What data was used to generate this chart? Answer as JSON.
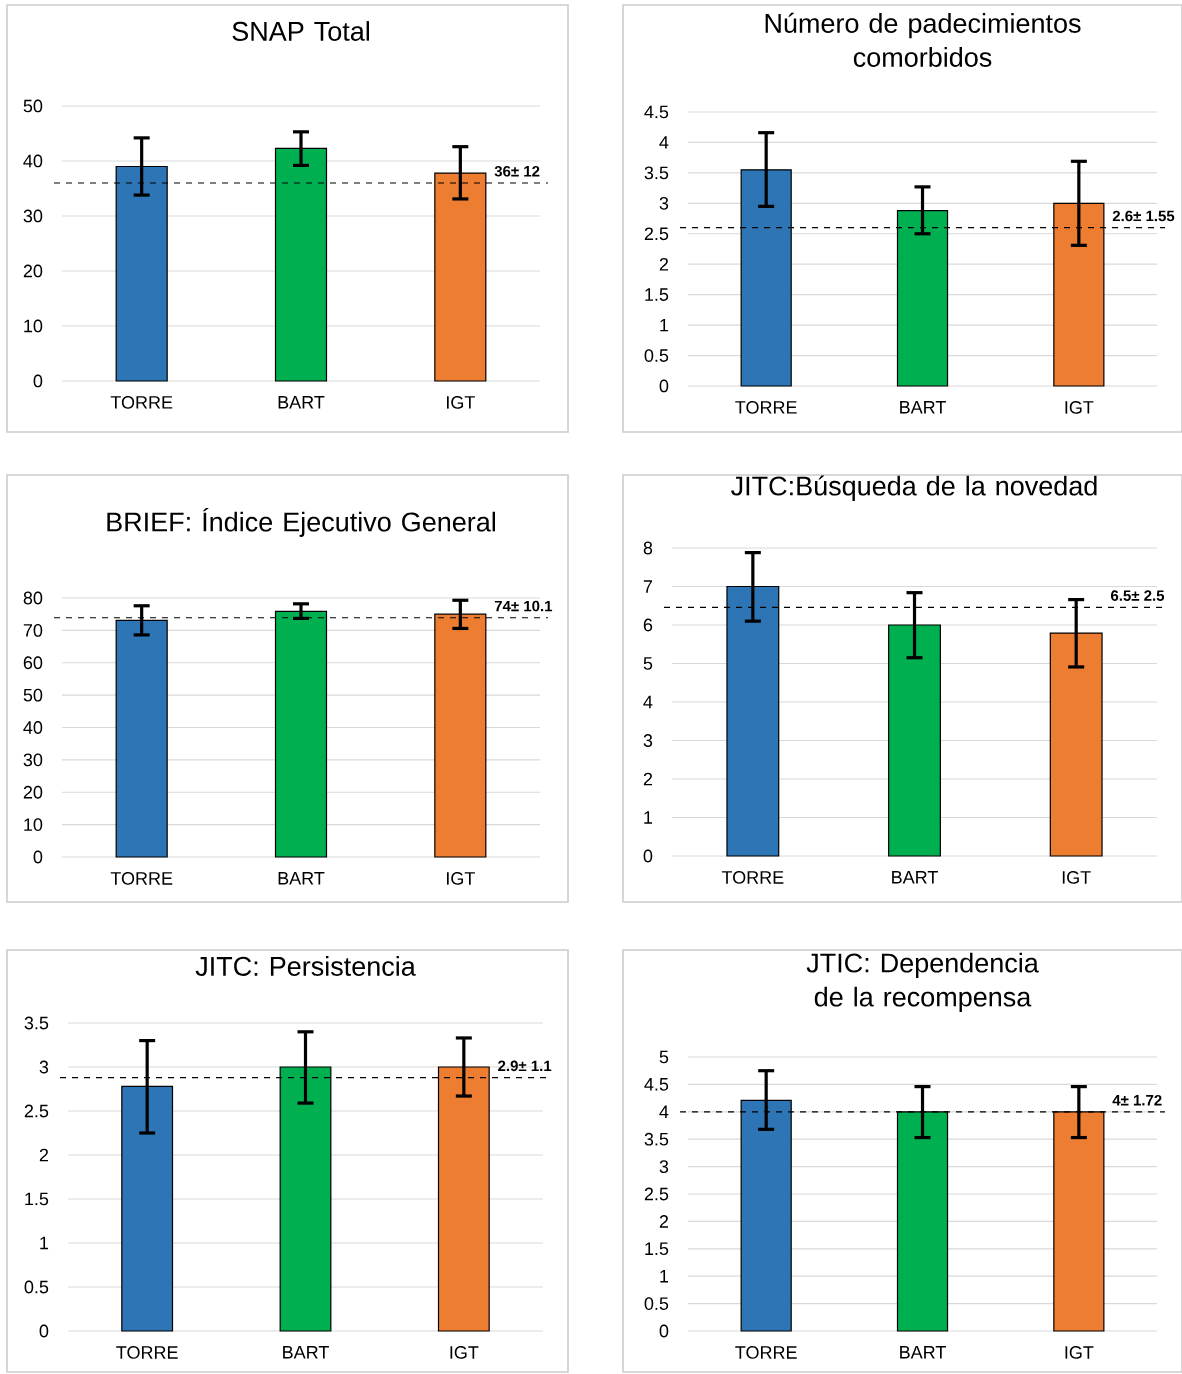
{
  "chart_data": [
    {
      "type": "bar",
      "title": "SNAP Total",
      "categories": [
        "TORRE",
        "BART",
        "IGT"
      ],
      "values": [
        39,
        42.3,
        37.8
      ],
      "colors": [
        "#2e75b6",
        "#00b050",
        "#ed7d31"
      ],
      "errors": [
        [
          33.8,
          44.2
        ],
        [
          39.2,
          45.3
        ],
        [
          33.1,
          42.6
        ]
      ],
      "ylim": [
        0,
        50
      ],
      "yticks": [
        0,
        10,
        20,
        30,
        40,
        50
      ],
      "grid": "y",
      "ref_lines": [
        {
          "axis": "y",
          "value": 36,
          "label": "36± 12"
        }
      ]
    },
    {
      "type": "bar",
      "title": "Número de padecimientos comorbidos",
      "categories": [
        "TORRE",
        "BART",
        "IGT"
      ],
      "values": [
        3.55,
        2.88,
        3.0
      ],
      "colors": [
        "#2e75b6",
        "#00b050",
        "#ed7d31"
      ],
      "errors": [
        [
          2.95,
          4.16
        ],
        [
          2.5,
          3.27
        ],
        [
          2.31,
          3.69
        ]
      ],
      "ylim": [
        0,
        4.5
      ],
      "yticks": [
        0,
        0.5,
        1,
        1.5,
        2,
        2.5,
        3,
        3.5,
        4,
        4.5
      ],
      "grid": "y",
      "ref_lines": [
        {
          "axis": "y",
          "value": 2.6,
          "label": "2.6± 1.55"
        }
      ]
    },
    {
      "type": "bar",
      "title": "BRIEF: Índice Ejecutivo General",
      "categories": [
        "TORRE",
        "BART",
        "IGT"
      ],
      "values": [
        73.1,
        75.9,
        75.0
      ],
      "colors": [
        "#2e75b6",
        "#00b050",
        "#ed7d31"
      ],
      "errors": [
        [
          68.6,
          77.6
        ],
        [
          73.7,
          78.2
        ],
        [
          70.6,
          79.3
        ]
      ],
      "ylim": [
        0,
        80
      ],
      "yticks": [
        0,
        10,
        20,
        30,
        40,
        50,
        60,
        70,
        80
      ],
      "grid": "y",
      "ref_lines": [
        {
          "axis": "y",
          "value": 73.9,
          "label": "74± 10.1"
        }
      ]
    },
    {
      "type": "bar",
      "title": "JITC:Búsqueda de la novedad",
      "categories": [
        "TORRE",
        "BART",
        "IGT"
      ],
      "values": [
        7.0,
        6.0,
        5.79
      ],
      "colors": [
        "#2e75b6",
        "#00b050",
        "#ed7d31"
      ],
      "errors": [
        [
          6.1,
          7.88
        ],
        [
          5.15,
          6.84
        ],
        [
          4.91,
          6.66
        ]
      ],
      "ylim": [
        0,
        8
      ],
      "yticks": [
        0,
        1,
        2,
        3,
        4,
        5,
        6,
        7,
        8
      ],
      "grid": "y",
      "ref_lines": [
        {
          "axis": "y",
          "value": 6.46,
          "label": "6.5± 2.5"
        }
      ]
    },
    {
      "type": "bar",
      "title": "JITC: Persistencia",
      "categories": [
        "TORRE",
        "BART",
        "IGT"
      ],
      "values": [
        2.78,
        3.0,
        3.0
      ],
      "colors": [
        "#2e75b6",
        "#00b050",
        "#ed7d31"
      ],
      "errors": [
        [
          2.25,
          3.3
        ],
        [
          2.59,
          3.4
        ],
        [
          2.67,
          3.33
        ]
      ],
      "ylim": [
        0,
        3.5
      ],
      "yticks": [
        0,
        0.5,
        1,
        1.5,
        2,
        2.5,
        3,
        3.5
      ],
      "grid": "y",
      "ref_lines": [
        {
          "axis": "y",
          "value": 2.88,
          "label": "2.9± 1.1"
        }
      ]
    },
    {
      "type": "bar",
      "title": "JTIC: Dependencia de la recompensa",
      "categories": [
        "TORRE",
        "BART",
        "IGT"
      ],
      "values": [
        4.21,
        4.0,
        4.0
      ],
      "colors": [
        "#2e75b6",
        "#00b050",
        "#ed7d31"
      ],
      "errors": [
        [
          3.68,
          4.75
        ],
        [
          3.53,
          4.46
        ],
        [
          3.53,
          4.46
        ]
      ],
      "ylim": [
        0,
        5
      ],
      "yticks": [
        0,
        0.5,
        1,
        1.5,
        2,
        2.5,
        3,
        3.5,
        4,
        4.5,
        5
      ],
      "grid": "y",
      "ref_lines": [
        {
          "axis": "y",
          "value": 4.0,
          "label": "4± 1.72"
        }
      ]
    }
  ]
}
